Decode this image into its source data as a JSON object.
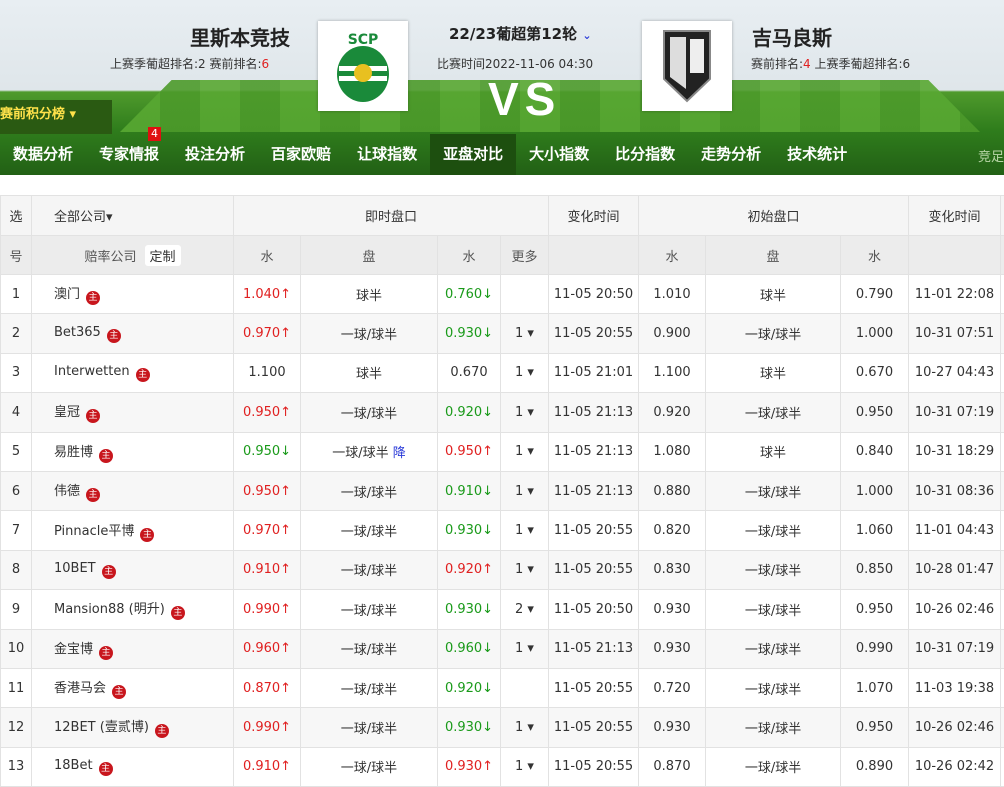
{
  "match": {
    "home": "里斯本竞技",
    "home_info_a": "上赛季葡超排名:2  赛前排名:",
    "home_rank": "6",
    "away": "吉马良斯",
    "away_info_a": "赛前排名:",
    "away_rank": "4",
    "away_info_b": "  上赛季葡超排名:6",
    "round": "22/23葡超第12轮",
    "time": "比赛时间2022-11-06 04:30",
    "vs": "VS",
    "home_logo_text": "SCP"
  },
  "rank_button": "赛前积分榜 ▾",
  "nav": {
    "items": [
      "数据分析",
      "专家情报",
      "投注分析",
      "百家欧赔",
      "让球指数",
      "亚盘对比",
      "大小指数",
      "比分指数",
      "走势分析",
      "技术统计"
    ],
    "active": 5,
    "badge": "4",
    "right": "竞足"
  },
  "table": {
    "h1": [
      "选",
      "全部公司▾",
      "即时盘口",
      "变化时间",
      "初始盘口",
      "变化时间"
    ],
    "h2": [
      "号",
      "赔率公司",
      "定制",
      "水",
      "盘",
      "水",
      "更多",
      "水",
      "盘",
      "水"
    ],
    "zhu": "主",
    "rows": [
      [
        "1",
        "澳门",
        "1.040",
        "u",
        "球半",
        "",
        "0.760",
        "d",
        "",
        "11-05 20:50",
        "1.010",
        "球半",
        "0.790",
        "11-01 22:08"
      ],
      [
        "2",
        "Bet365",
        "0.970",
        "u",
        "一球/球半",
        "",
        "0.930",
        "d",
        "1",
        "11-05 20:55",
        "0.900",
        "一球/球半",
        "1.000",
        "10-31 07:51"
      ],
      [
        "3",
        "Interwetten",
        "1.100",
        "",
        "球半",
        "",
        "0.670",
        "",
        "1",
        "11-05 21:01",
        "1.100",
        "球半",
        "0.670",
        "10-27 04:43"
      ],
      [
        "4",
        "皇冠",
        "0.950",
        "u",
        "一球/球半",
        "",
        "0.920",
        "d",
        "1",
        "11-05 21:13",
        "0.920",
        "一球/球半",
        "0.950",
        "10-31 07:19"
      ],
      [
        "5",
        "易胜博",
        "0.950",
        "d",
        "一球/球半",
        "降",
        "0.950",
        "u",
        "1",
        "11-05 21:13",
        "1.080",
        "球半",
        "0.840",
        "10-31 18:29"
      ],
      [
        "6",
        "伟德",
        "0.950",
        "u",
        "一球/球半",
        "",
        "0.910",
        "d",
        "1",
        "11-05 21:13",
        "0.880",
        "一球/球半",
        "1.000",
        "10-31 08:36"
      ],
      [
        "7",
        "Pinnacle平博",
        "0.970",
        "u",
        "一球/球半",
        "",
        "0.930",
        "d",
        "1",
        "11-05 20:55",
        "0.820",
        "一球/球半",
        "1.060",
        "11-01 04:43"
      ],
      [
        "8",
        "10BET",
        "0.910",
        "u",
        "一球/球半",
        "",
        "0.920",
        "u",
        "1",
        "11-05 20:55",
        "0.830",
        "一球/球半",
        "0.850",
        "10-28 01:47"
      ],
      [
        "9",
        "Mansion88 (明升)",
        "0.990",
        "u",
        "一球/球半",
        "",
        "0.930",
        "d",
        "2",
        "11-05 20:50",
        "0.930",
        "一球/球半",
        "0.950",
        "10-26 02:46"
      ],
      [
        "10",
        "金宝博",
        "0.960",
        "u",
        "一球/球半",
        "",
        "0.960",
        "d",
        "1",
        "11-05 21:13",
        "0.930",
        "一球/球半",
        "0.990",
        "10-31 07:19"
      ],
      [
        "11",
        "香港马会",
        "0.870",
        "u",
        "一球/球半",
        "",
        "0.920",
        "d",
        "",
        "11-05 20:55",
        "0.720",
        "一球/球半",
        "1.070",
        "11-03 19:38"
      ],
      [
        "12",
        "12BET (壹贰博)",
        "0.990",
        "u",
        "一球/球半",
        "",
        "0.930",
        "d",
        "1",
        "11-05 20:55",
        "0.930",
        "一球/球半",
        "0.950",
        "10-26 02:46"
      ],
      [
        "13",
        "18Bet",
        "0.910",
        "u",
        "一球/球半",
        "",
        "0.930",
        "u",
        "1",
        "11-05 20:55",
        "0.870",
        "一球/球半",
        "0.890",
        "10-26 02:42"
      ]
    ]
  },
  "colors": {
    "up": "#e02020",
    "down": "#1a9a1a",
    "note": "#2a3ad8",
    "nav_bg": "#2f7d1c"
  }
}
